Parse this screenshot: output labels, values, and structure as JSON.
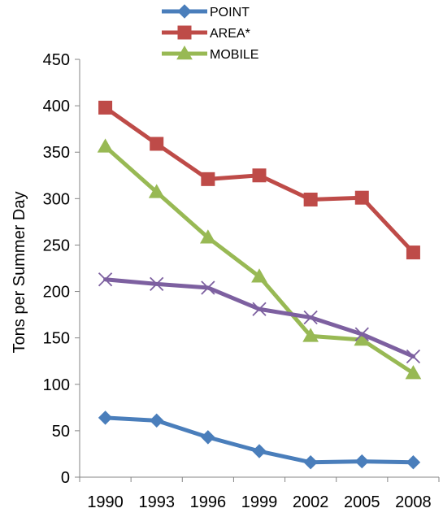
{
  "chart_data": {
    "type": "line",
    "title": "",
    "xlabel": "",
    "ylabel": "Tons per Summer Day",
    "categories": [
      "1990",
      "1993",
      "1996",
      "1999",
      "2002",
      "2005",
      "2008"
    ],
    "ylim": [
      0,
      450
    ],
    "y_ticks": [
      0,
      50,
      100,
      150,
      200,
      250,
      300,
      350,
      400,
      450
    ],
    "grid": false,
    "legend_position": "top",
    "series": [
      {
        "name": "POINT",
        "color": "#4a7ebb",
        "marker": "diamond",
        "values": [
          64,
          61,
          43,
          28,
          16,
          17,
          16
        ]
      },
      {
        "name": "AREA*",
        "color": "#be4b48",
        "marker": "square",
        "values": [
          398,
          359,
          321,
          325,
          299,
          301,
          242
        ]
      },
      {
        "name": "MOBILE",
        "color": "#98b954",
        "marker": "triangle",
        "values": [
          356,
          307,
          258,
          216,
          152,
          148,
          112
        ]
      },
      {
        "name": "",
        "color": "#7d60a0",
        "marker": "x",
        "values": [
          213,
          208,
          204,
          181,
          172,
          154,
          130
        ]
      }
    ]
  }
}
